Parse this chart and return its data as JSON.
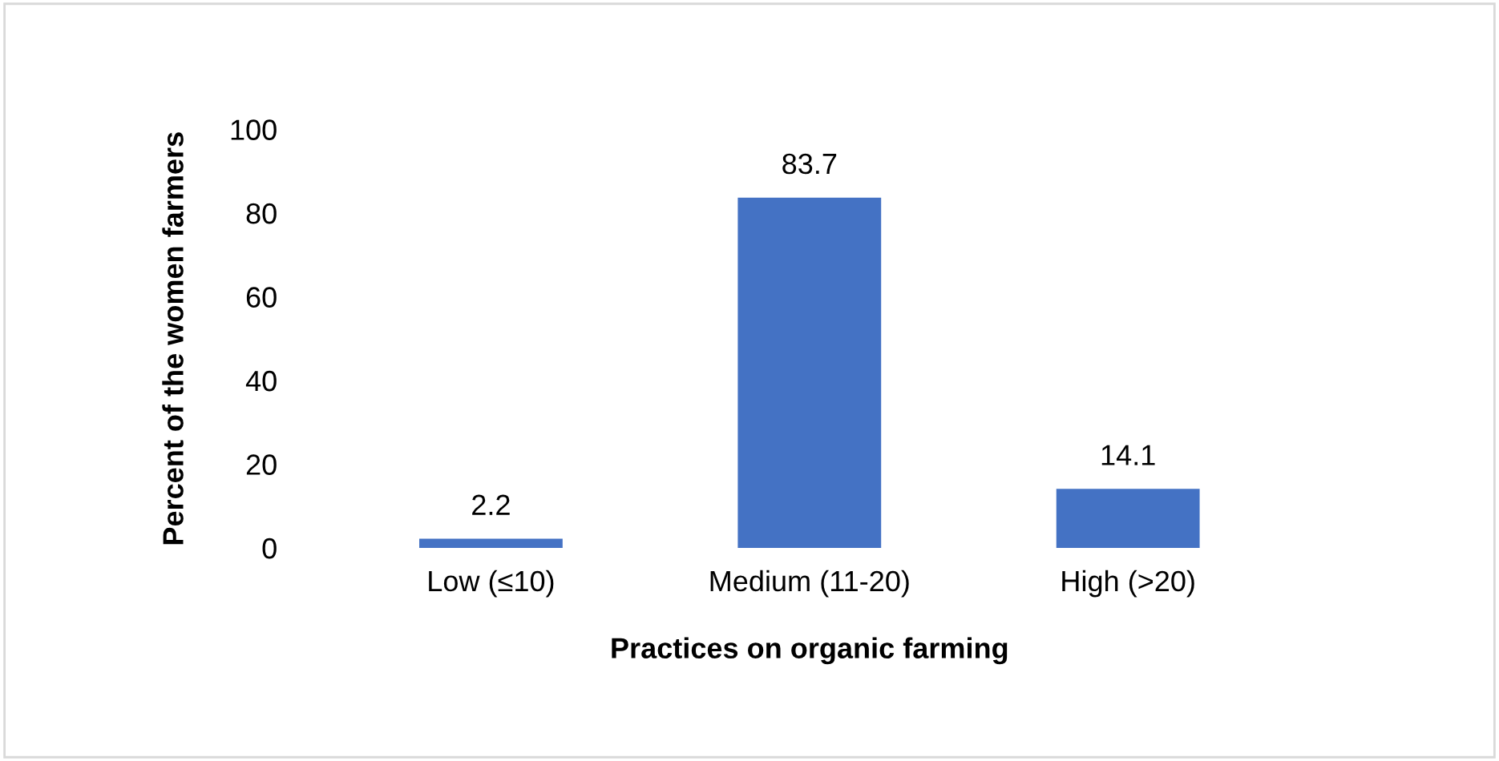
{
  "chart_data": {
    "type": "bar",
    "categories": [
      "Low (≤10)",
      "Medium (11-20)",
      "High (>20)"
    ],
    "values": [
      2.2,
      83.7,
      14.1
    ],
    "color": "#4472c4",
    "xlabel": "Practices on organic farming",
    "ylabel": "Percent of the women farmers",
    "ylim": [
      0,
      100
    ],
    "yticks": [
      0,
      20,
      40,
      60,
      80,
      100
    ],
    "data_labels": true,
    "grid": false
  }
}
